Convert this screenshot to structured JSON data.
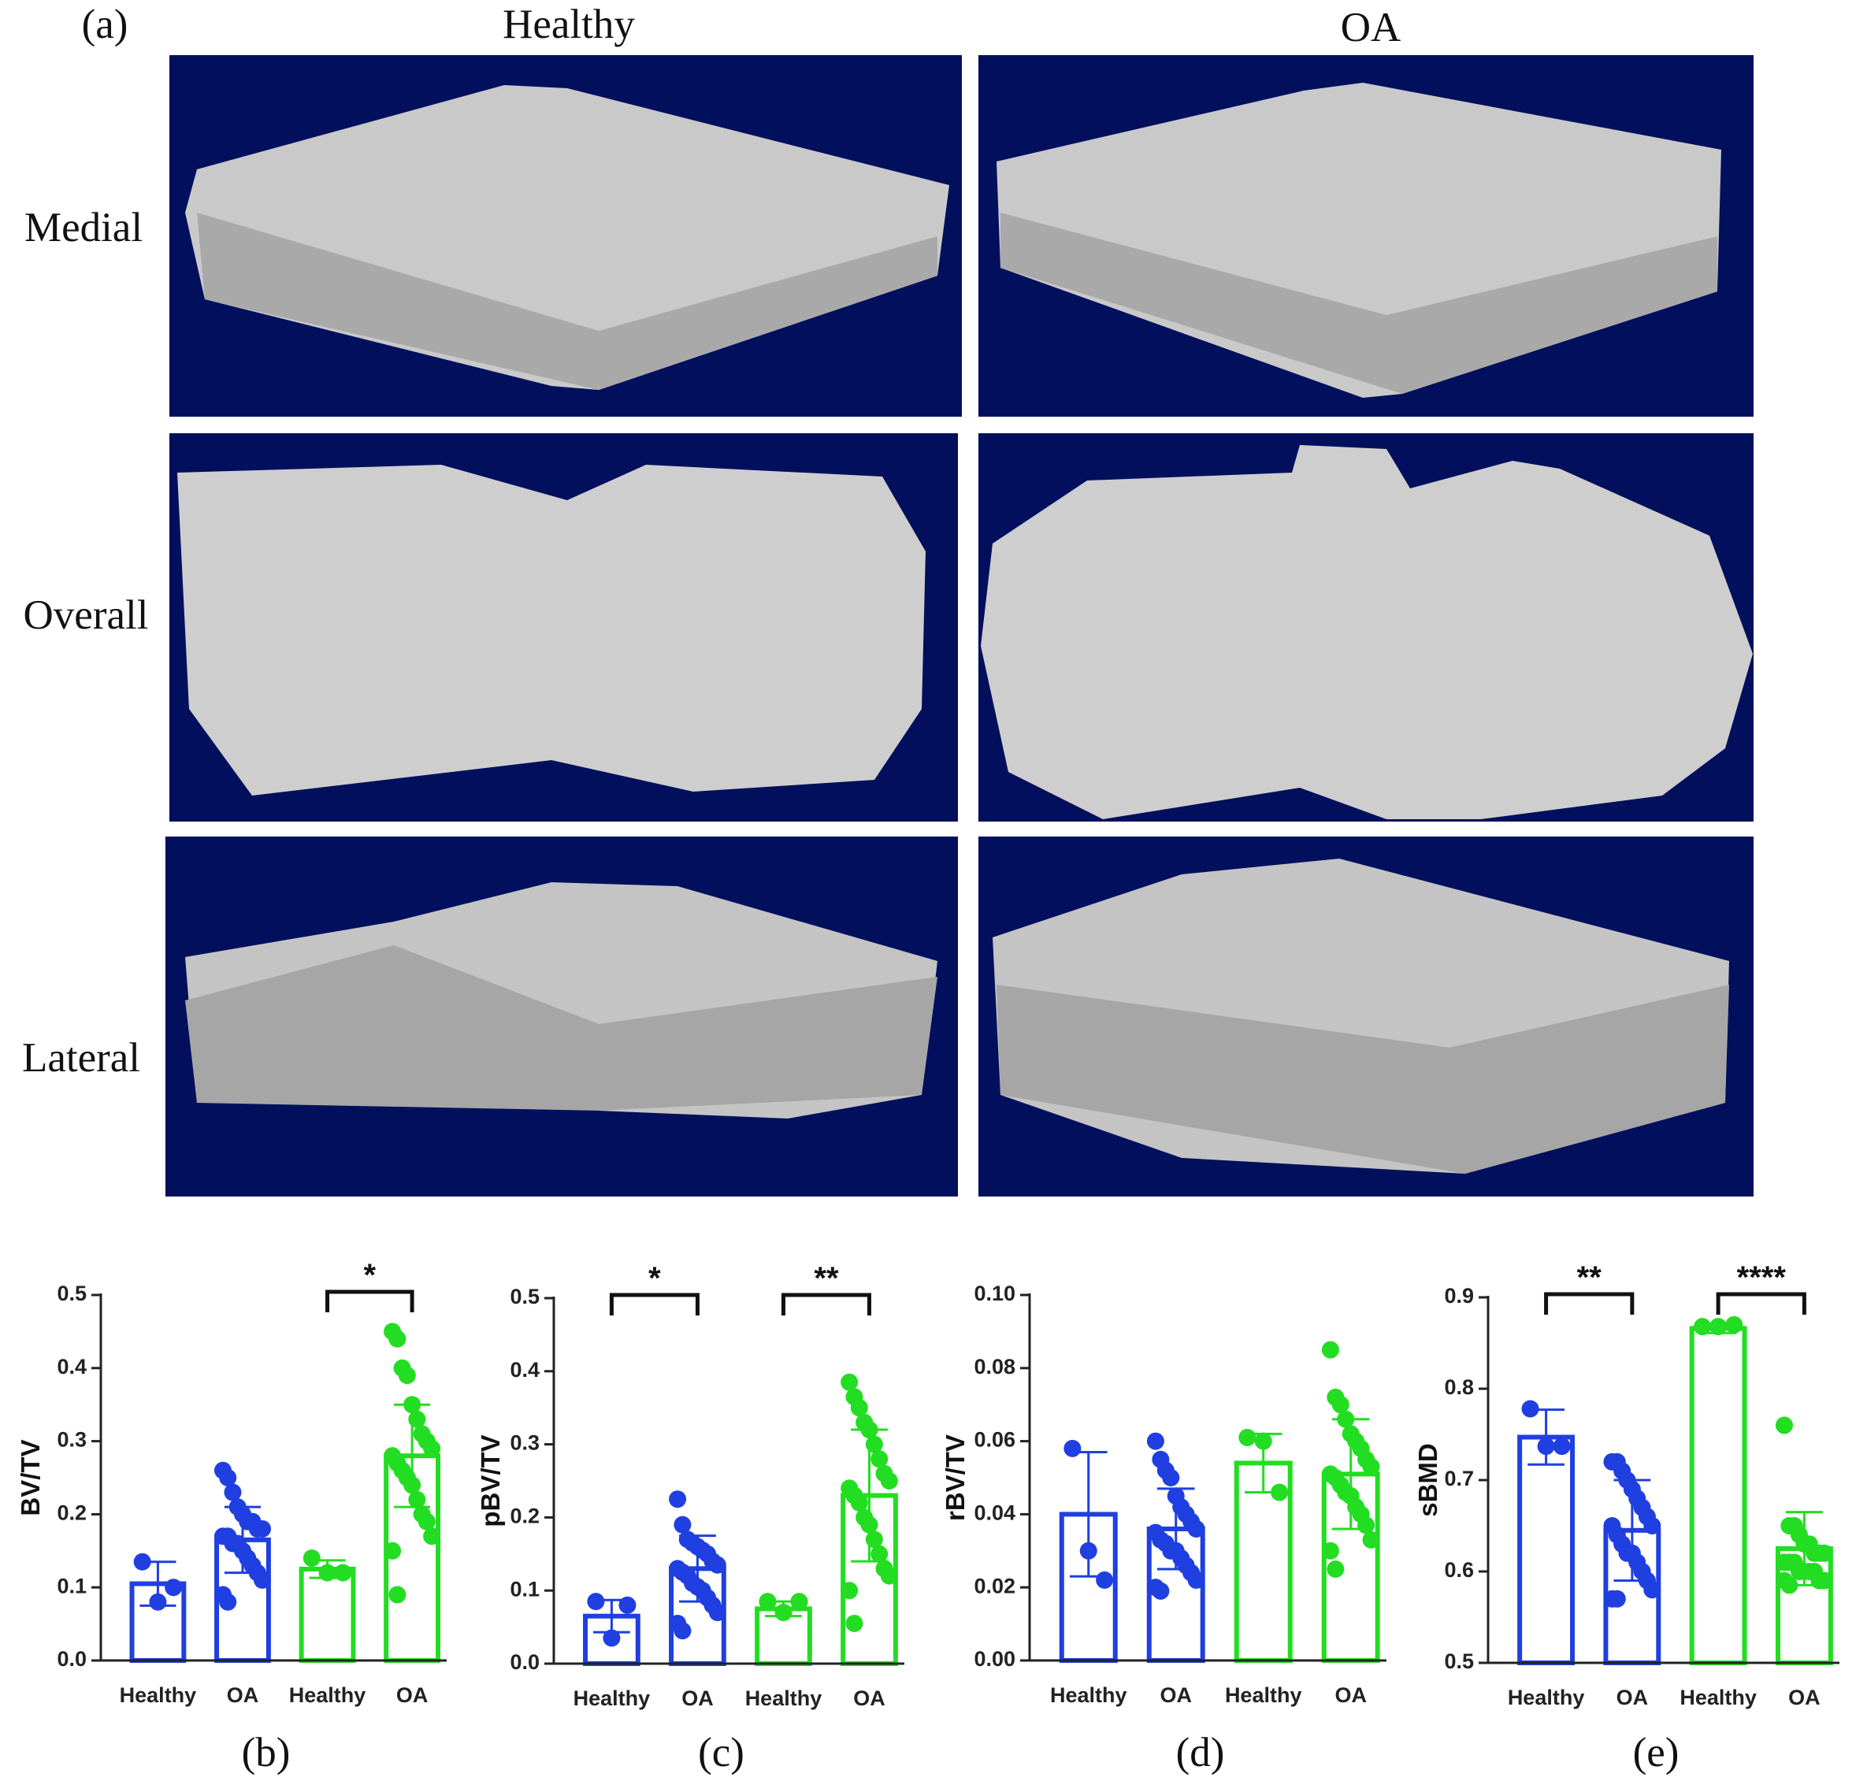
{
  "figure": {
    "panel_label": "(a)",
    "columns": [
      "Healthy",
      "OA"
    ],
    "rows": [
      "Medial",
      "Overall",
      "Lateral"
    ]
  },
  "chart_data": [
    {
      "type": "bar",
      "panel_label": "(b)",
      "ylabel": "BV/TV",
      "categories": [
        "Healthy",
        "OA",
        "Healthy",
        "OA"
      ],
      "colors": [
        "#1f3fe0",
        "#1f3fe0",
        "#22dd22",
        "#22dd22"
      ],
      "values": [
        0.105,
        0.165,
        0.125,
        0.28
      ],
      "errors": [
        0.03,
        0.045,
        0.012,
        0.07
      ],
      "points": [
        [
          0.135,
          0.08,
          0.1
        ],
        [
          0.26,
          0.25,
          0.23,
          0.21,
          0.2,
          0.19,
          0.19,
          0.18,
          0.18,
          0.17,
          0.17,
          0.16,
          0.16,
          0.15,
          0.14,
          0.13,
          0.12,
          0.11,
          0.09,
          0.08
        ],
        [
          0.14,
          0.12,
          0.12
        ],
        [
          0.45,
          0.44,
          0.4,
          0.39,
          0.35,
          0.33,
          0.31,
          0.3,
          0.29,
          0.28,
          0.27,
          0.26,
          0.25,
          0.24,
          0.22,
          0.2,
          0.19,
          0.17,
          0.15,
          0.09
        ]
      ],
      "significance": [
        {
          "label": "*",
          "from": 2,
          "to": 3
        }
      ],
      "ylim": [
        0,
        0.5
      ],
      "yticks": [
        {
          "value": 0,
          "label": "0.0"
        },
        0.1,
        0.2,
        0.3,
        0.4,
        0.5
      ]
    },
    {
      "type": "bar",
      "panel_label": "(c)",
      "ylabel": "pBV/TV",
      "categories": [
        "Healthy",
        "OA",
        "Healthy",
        "OA"
      ],
      "colors": [
        "#1f3fe0",
        "#1f3fe0",
        "#22dd22",
        "#22dd22"
      ],
      "values": [
        0.065,
        0.13,
        0.075,
        0.23
      ],
      "errors": [
        0.022,
        0.045,
        0.01,
        0.09
      ],
      "points": [
        [
          0.085,
          0.035,
          0.08
        ],
        [
          0.225,
          0.19,
          0.17,
          0.165,
          0.16,
          0.155,
          0.15,
          0.14,
          0.135,
          0.13,
          0.125,
          0.12,
          0.11,
          0.105,
          0.1,
          0.09,
          0.08,
          0.07,
          0.055,
          0.045
        ],
        [
          0.085,
          0.07,
          0.085
        ],
        [
          0.385,
          0.365,
          0.35,
          0.33,
          0.32,
          0.3,
          0.28,
          0.26,
          0.25,
          0.24,
          0.23,
          0.22,
          0.2,
          0.19,
          0.17,
          0.15,
          0.13,
          0.12,
          0.1,
          0.055
        ]
      ],
      "significance": [
        {
          "label": "*",
          "from": 0,
          "to": 1
        },
        {
          "label": "**",
          "from": 2,
          "to": 3
        }
      ],
      "ylim": [
        0,
        0.5
      ],
      "yticks": [
        {
          "value": 0,
          "label": "0.0"
        },
        0.1,
        0.2,
        0.3,
        0.4,
        0.5
      ]
    },
    {
      "type": "bar",
      "panel_label": "(d)",
      "ylabel": "rBV/TV",
      "categories": [
        "Healthy",
        "OA",
        "Healthy",
        "OA"
      ],
      "colors": [
        "#1f3fe0",
        "#1f3fe0",
        "#22dd22",
        "#22dd22"
      ],
      "values": [
        0.04,
        0.036,
        0.054,
        0.051
      ],
      "errors": [
        0.017,
        0.011,
        0.008,
        0.015
      ],
      "points": [
        [
          0.058,
          0.03,
          0.022
        ],
        [
          0.06,
          0.055,
          0.052,
          0.05,
          0.045,
          0.042,
          0.04,
          0.038,
          0.036,
          0.035,
          0.033,
          0.032,
          0.03,
          0.03,
          0.028,
          0.026,
          0.024,
          0.022,
          0.02,
          0.019
        ],
        [
          0.061,
          0.06,
          0.046
        ],
        [
          0.085,
          0.072,
          0.07,
          0.066,
          0.062,
          0.06,
          0.058,
          0.055,
          0.053,
          0.051,
          0.05,
          0.048,
          0.046,
          0.045,
          0.042,
          0.04,
          0.037,
          0.033,
          0.03,
          0.025
        ]
      ],
      "significance": [],
      "ylim": [
        0,
        0.1
      ],
      "yticks": [
        {
          "value": 0,
          "label": "0.00"
        },
        0.02,
        0.04,
        0.06,
        0.08,
        {
          "value": 0.1,
          "label": "0.10"
        }
      ]
    },
    {
      "type": "bar",
      "panel_label": "(e)",
      "ylabel": "sBMD",
      "categories": [
        "Healthy",
        "OA",
        "Healthy",
        "OA"
      ],
      "colors": [
        "#1f3fe0",
        "#1f3fe0",
        "#22dd22",
        "#22dd22"
      ],
      "values": [
        0.747,
        0.645,
        0.866,
        0.625
      ],
      "errors": [
        0.03,
        0.055,
        0.005,
        0.04
      ],
      "points": [
        [
          0.778,
          0.737,
          0.737
        ],
        [
          0.72,
          0.72,
          0.71,
          0.7,
          0.69,
          0.68,
          0.67,
          0.66,
          0.65,
          0.65,
          0.64,
          0.63,
          0.62,
          0.62,
          0.61,
          0.6,
          0.59,
          0.58,
          0.57,
          0.57
        ],
        [
          0.868,
          0.868,
          0.87
        ],
        [
          0.76,
          0.65,
          0.65,
          0.64,
          0.63,
          0.63,
          0.62,
          0.62,
          0.62,
          0.61,
          0.61,
          0.61,
          0.6,
          0.6,
          0.6,
          0.6,
          0.59,
          0.59,
          0.59,
          0.585
        ]
      ],
      "significance": [
        {
          "label": "**",
          "from": 0,
          "to": 1
        },
        {
          "label": "****",
          "from": 2,
          "to": 3
        }
      ],
      "ylim": [
        0.5,
        0.9
      ],
      "yticks": [
        0.5,
        0.6,
        0.7,
        0.8,
        0.9
      ]
    }
  ]
}
